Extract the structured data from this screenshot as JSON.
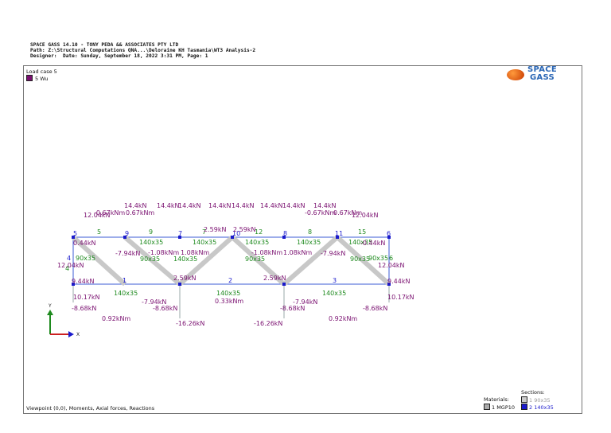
{
  "header": {
    "line1": "SPACE GASS 14.10 - TONY PEDA && ASSOCIATES PTY LTD",
    "line2": "Path: Z:\\Structural Computations QNA...\\Deloraine KH Tasmania\\WT3 Analysis-2",
    "line3": "Designer:  Date: Sunday, September 18, 2022 3:31 PM, Page: 1"
  },
  "load_case": {
    "title": "Load case 5",
    "item": "5 Wu",
    "color": "#7a1070"
  },
  "logo": {
    "line1": "SPACE",
    "line2": "GASS"
  },
  "footer": "Viewpoint (0,0), Moments, Axial forces, Reactions",
  "materials": {
    "title": "Materials:",
    "item": "1  MGP10"
  },
  "sections": {
    "title": "Sections:",
    "item1": "1  90x35",
    "item2": "2  140x35"
  },
  "axes": {
    "x": "X",
    "y": "Y"
  },
  "colors": {
    "force": "#7a1070",
    "member": "#1e8a1e",
    "node": "#1a1acc"
  },
  "node_labels": [
    "5",
    "9",
    "7",
    "10",
    "8",
    "11",
    "6",
    "4",
    "1",
    "2",
    "3"
  ],
  "member_labels": [
    "5",
    "9",
    "7",
    "12",
    "8",
    "15",
    "6",
    "4",
    "1",
    "2",
    "3"
  ],
  "section_labels": [
    "140x35",
    "140x35",
    "140x35",
    "140x35",
    "140x35",
    "90x35",
    "90x35",
    "90x35",
    "90x35",
    "90x35",
    "140x35",
    "140x35",
    "140x35",
    "140x35"
  ],
  "forces": [
    "14.4kN",
    "14.4kN",
    "14.4kN",
    "14.4kN",
    "14.4kN",
    "14.4kN",
    "14.4kN",
    "14.4kN",
    "12.04kN",
    "-0.67kNm",
    "0.67kNm",
    "-0.67kNm",
    "0.67kNm",
    "12.04kN",
    "0.44kN",
    "-0.44kN",
    "12.04kN",
    "12.04kN",
    "9.44kN",
    "9.44kN",
    "-7.94kN",
    "-1.08kNm",
    "1.08kNm",
    "-1.08kNm",
    "1.08kNm",
    "-7.94kN",
    "2.59kN",
    "2.59kN",
    "2.59kN",
    "2.59kN",
    "10.17kN",
    "10.17kN",
    "-7.94kN",
    "-7.94kN",
    "0.33kNm",
    "-8.68kN",
    "-8.68kN",
    "-8.68kN",
    "-8.68kN",
    "0.92kNm",
    "0.92kNm",
    "-16.26kN",
    "-16.26kN"
  ]
}
